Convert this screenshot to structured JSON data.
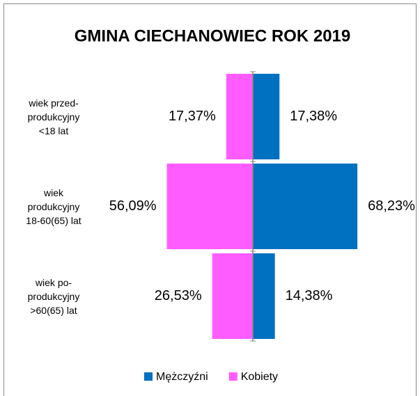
{
  "chart_data": {
    "type": "pyramid",
    "title": "GMINA CIECHANOWIEC ROK 2019",
    "categories": [
      "wiek przed-\nprodukcyjny\n<18 lat",
      "wiek\nprodukcyjny\n18-60(65) lat",
      "wiek po-\nprodukcyjny\n>60(65) lat"
    ],
    "series": [
      {
        "name": "Mężczyźni",
        "color": "#0070c0",
        "values": [
          17.38,
          68.23,
          14.38
        ],
        "value_labels": [
          "17,38%",
          "68,23%",
          "14,38%"
        ]
      },
      {
        "name": "Kobiety",
        "color": "#ff5cff",
        "values": [
          17.37,
          56.09,
          26.53
        ],
        "value_labels": [
          "17,37%",
          "56,09%",
          "26,53%"
        ]
      }
    ]
  }
}
